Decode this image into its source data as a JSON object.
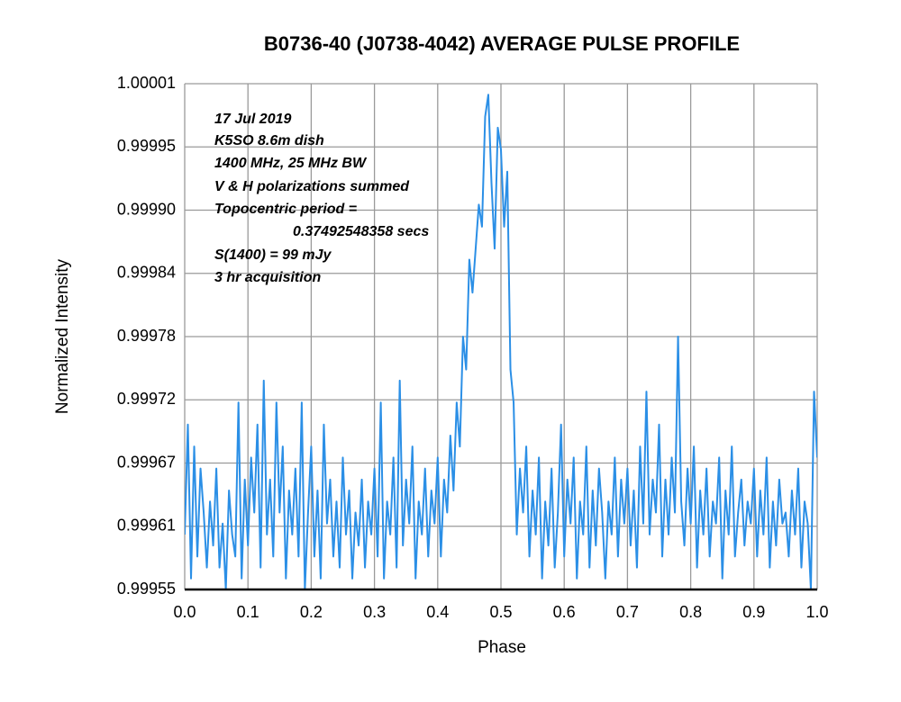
{
  "chart_data": {
    "type": "line",
    "title": "B0736-40 (J0738-4042) AVERAGE PULSE PROFILE",
    "x_label": "Phase",
    "y_label": "Normalized Intensity",
    "annotations": [
      "17 Jul 2019",
      "K5SO 8.6m dish",
      "1400 MHz, 25 MHz BW",
      "V & H polarizations summed",
      "Topocentric period =",
      "0.37492548358 secs",
      "S(1400) = 99 mJy",
      "3 hr acquisition"
    ],
    "xlim": [
      0,
      1
    ],
    "xticks": [
      {
        "value": 0,
        "label": "0.0"
      },
      0.1,
      0.2,
      0.3,
      0.4,
      0.5,
      0.6,
      0.7,
      0.8,
      0.9,
      {
        "value": 1,
        "label": "1.0"
      }
    ],
    "ylim": [
      0.99955,
      1.00001
    ],
    "yticks": [
      0.99955,
      {
        "value": 0.9996075,
        "label": "0.99961"
      },
      {
        "value": 0.999665,
        "label": "0.99967"
      },
      {
        "value": 0.9997225,
        "label": "0.99972"
      },
      0.99978,
      {
        "value": 0.9998375,
        "label": "0.99984"
      },
      {
        "value": 0.999895,
        "label": "0.99990"
      },
      {
        "value": 0.9999525,
        "label": "0.99995"
      },
      1.00001
    ],
    "grid": true,
    "x": [
      0,
      0.005,
      0.01,
      0.015,
      0.02,
      0.025,
      0.03,
      0.035,
      0.04,
      0.045,
      0.05,
      0.055,
      0.06,
      0.065,
      0.07,
      0.075,
      0.08,
      0.085,
      0.09,
      0.095,
      0.1,
      0.105,
      0.11,
      0.115,
      0.12,
      0.125,
      0.13,
      0.135,
      0.14,
      0.145,
      0.15,
      0.155,
      0.16,
      0.165,
      0.17,
      0.175,
      0.18,
      0.185,
      0.19,
      0.195,
      0.2,
      0.205,
      0.21,
      0.215,
      0.22,
      0.225,
      0.23,
      0.235,
      0.24,
      0.245,
      0.25,
      0.255,
      0.26,
      0.265,
      0.27,
      0.275,
      0.28,
      0.285,
      0.29,
      0.295,
      0.3,
      0.305,
      0.31,
      0.315,
      0.32,
      0.325,
      0.33,
      0.335,
      0.34,
      0.345,
      0.35,
      0.355,
      0.36,
      0.365,
      0.37,
      0.375,
      0.38,
      0.385,
      0.39,
      0.395,
      0.4,
      0.405,
      0.41,
      0.415,
      0.42,
      0.425,
      0.43,
      0.435,
      0.44,
      0.445,
      0.45,
      0.455,
      0.46,
      0.465,
      0.47,
      0.475,
      0.48,
      0.485,
      0.49,
      0.495,
      0.5,
      0.505,
      0.51,
      0.515,
      0.52,
      0.525,
      0.53,
      0.535,
      0.54,
      0.545,
      0.55,
      0.555,
      0.56,
      0.565,
      0.57,
      0.575,
      0.58,
      0.585,
      0.59,
      0.595,
      0.6,
      0.605,
      0.61,
      0.615,
      0.62,
      0.625,
      0.63,
      0.635,
      0.64,
      0.645,
      0.65,
      0.655,
      0.66,
      0.665,
      0.67,
      0.675,
      0.68,
      0.685,
      0.69,
      0.695,
      0.7,
      0.705,
      0.71,
      0.715,
      0.72,
      0.725,
      0.73,
      0.735,
      0.74,
      0.745,
      0.75,
      0.755,
      0.76,
      0.765,
      0.77,
      0.775,
      0.78,
      0.785,
      0.79,
      0.795,
      0.8,
      0.805,
      0.81,
      0.815,
      0.82,
      0.825,
      0.83,
      0.835,
      0.84,
      0.845,
      0.85,
      0.855,
      0.86,
      0.865,
      0.87,
      0.875,
      0.88,
      0.885,
      0.89,
      0.895,
      0.9,
      0.905,
      0.91,
      0.915,
      0.92,
      0.925,
      0.93,
      0.935,
      0.94,
      0.945,
      0.95,
      0.955,
      0.96,
      0.965,
      0.97,
      0.975,
      0.98,
      0.985,
      0.99,
      0.995,
      1
    ],
    "series": [
      {
        "name": "Intensity",
        "color": "#2b8fe6",
        "values": [
          0.9996,
          0.9997,
          0.99956,
          0.99968,
          0.99958,
          0.99966,
          0.99962,
          0.99957,
          0.99963,
          0.99959,
          0.99966,
          0.99957,
          0.99961,
          0.99955,
          0.99964,
          0.9996,
          0.99958,
          0.99972,
          0.99956,
          0.99965,
          0.99959,
          0.99967,
          0.99962,
          0.9997,
          0.99957,
          0.99974,
          0.9996,
          0.99965,
          0.99958,
          0.99972,
          0.99962,
          0.99968,
          0.99956,
          0.99964,
          0.9996,
          0.99966,
          0.99958,
          0.99972,
          0.99955,
          0.99962,
          0.99968,
          0.99958,
          0.99964,
          0.99956,
          0.9997,
          0.99961,
          0.99965,
          0.99958,
          0.99963,
          0.99957,
          0.99967,
          0.9996,
          0.99964,
          0.99956,
          0.99962,
          0.99959,
          0.99965,
          0.99957,
          0.99963,
          0.9996,
          0.99966,
          0.99958,
          0.99972,
          0.99956,
          0.99963,
          0.9996,
          0.99967,
          0.99957,
          0.99974,
          0.99959,
          0.99965,
          0.99961,
          0.99968,
          0.99956,
          0.99963,
          0.9996,
          0.99966,
          0.99958,
          0.99964,
          0.99961,
          0.99967,
          0.99958,
          0.99965,
          0.99962,
          0.99969,
          0.99964,
          0.99972,
          0.99968,
          0.99978,
          0.99975,
          0.99985,
          0.99982,
          0.99986,
          0.9999,
          0.99988,
          0.99998,
          1.0,
          0.99992,
          0.99986,
          0.99997,
          0.99995,
          0.99988,
          0.99993,
          0.99975,
          0.99972,
          0.9996,
          0.99966,
          0.99962,
          0.99968,
          0.99958,
          0.99964,
          0.9996,
          0.99967,
          0.99956,
          0.99963,
          0.99959,
          0.99966,
          0.99957,
          0.99962,
          0.9997,
          0.99958,
          0.99965,
          0.99961,
          0.99967,
          0.99956,
          0.99963,
          0.9996,
          0.99968,
          0.99957,
          0.99964,
          0.99959,
          0.99966,
          0.99962,
          0.99956,
          0.99963,
          0.9996,
          0.99967,
          0.99958,
          0.99965,
          0.99961,
          0.99966,
          0.99959,
          0.99964,
          0.99957,
          0.99968,
          0.99961,
          0.99973,
          0.9996,
          0.99965,
          0.99962,
          0.9997,
          0.99958,
          0.99965,
          0.9996,
          0.99967,
          0.99962,
          0.99978,
          0.99963,
          0.99959,
          0.99966,
          0.99961,
          0.99968,
          0.99957,
          0.99964,
          0.9996,
          0.99966,
          0.99958,
          0.99963,
          0.99961,
          0.99967,
          0.99956,
          0.99964,
          0.9996,
          0.99968,
          0.99958,
          0.99962,
          0.99965,
          0.99959,
          0.99963,
          0.99961,
          0.99966,
          0.99958,
          0.99964,
          0.9996,
          0.99967,
          0.99957,
          0.99963,
          0.99959,
          0.99965,
          0.99961,
          0.99962,
          0.99958,
          0.99964,
          0.9996,
          0.99966,
          0.99957,
          0.99963,
          0.99961,
          0.99955,
          0.99973,
          0.99967
        ]
      }
    ]
  }
}
